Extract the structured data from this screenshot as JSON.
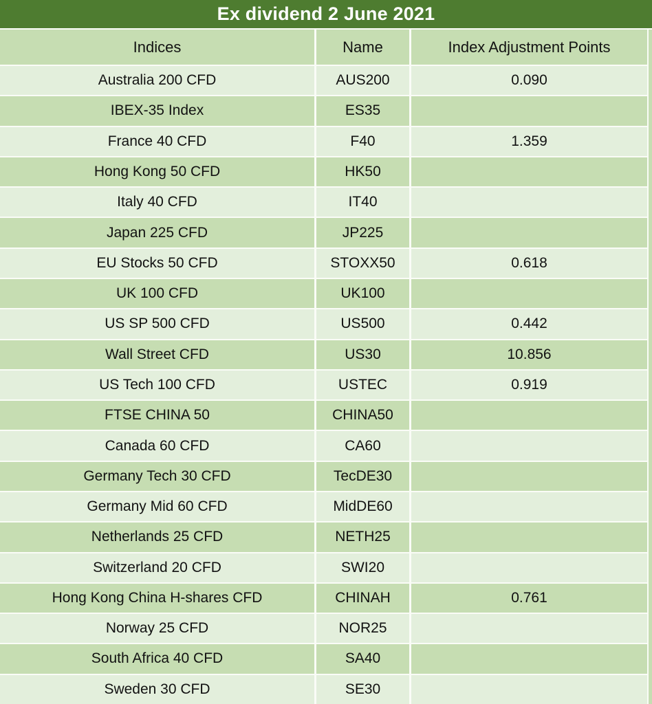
{
  "title": "Ex dividend 2 June 2021",
  "colors": {
    "banner_green": "#4e7c30",
    "stripe_light": "#e3efdc",
    "stripe_medium": "#c6ddb2",
    "title_text": "#ffffff",
    "body_text": "#121212"
  },
  "chart_data": {
    "type": "table",
    "title": "Ex dividend 2 June 2021",
    "columns": [
      "Indices",
      "Name",
      "Index Adjustment Points"
    ],
    "rows": [
      [
        "Australia 200 CFD",
        "AUS200",
        "0.090"
      ],
      [
        "IBEX-35 Index",
        "ES35",
        ""
      ],
      [
        "France 40 CFD",
        "F40",
        "1.359"
      ],
      [
        "Hong Kong 50 CFD",
        "HK50",
        ""
      ],
      [
        "Italy 40 CFD",
        "IT40",
        ""
      ],
      [
        "Japan 225 CFD",
        "JP225",
        ""
      ],
      [
        "EU Stocks 50 CFD",
        "STOXX50",
        "0.618"
      ],
      [
        "UK 100 CFD",
        "UK100",
        ""
      ],
      [
        "US SP 500 CFD",
        "US500",
        "0.442"
      ],
      [
        "Wall Street CFD",
        "US30",
        "10.856"
      ],
      [
        "US Tech 100 CFD",
        "USTEC",
        "0.919"
      ],
      [
        "FTSE CHINA 50",
        "CHINA50",
        ""
      ],
      [
        "Canada 60 CFD",
        "CA60",
        ""
      ],
      [
        "Germany Tech 30 CFD",
        "TecDE30",
        ""
      ],
      [
        "Germany Mid 60 CFD",
        "MidDE60",
        ""
      ],
      [
        "Netherlands 25 CFD",
        "NETH25",
        ""
      ],
      [
        "Switzerland 20 CFD",
        "SWI20",
        ""
      ],
      [
        "Hong Kong China H-shares CFD",
        "CHINAH",
        "0.761"
      ],
      [
        "Norway 25 CFD",
        "NOR25",
        ""
      ],
      [
        "South Africa 40 CFD",
        "SA40",
        ""
      ],
      [
        "Sweden 30 CFD",
        "SE30",
        ""
      ]
    ],
    "layout": {
      "striped_rows": true,
      "text_align": "center",
      "header_position": "top"
    }
  }
}
